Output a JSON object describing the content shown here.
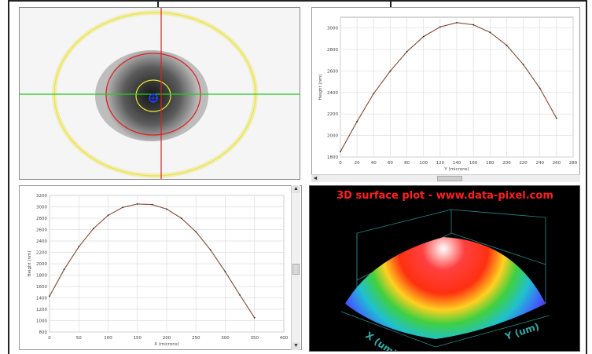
{
  "y_profile": {
    "chart_data": {
      "type": "line",
      "xlabel": "Y (microns)",
      "ylabel": "Height (nm)",
      "x_ticks": [
        "0",
        "20",
        "40",
        "60",
        "80",
        "100",
        "120",
        "140",
        "160",
        "180",
        "200",
        "220",
        "240",
        "260",
        "280"
      ],
      "y_ticks": [
        "1800",
        "2000",
        "2200",
        "2400",
        "2600",
        "2800",
        "3000"
      ],
      "xlim": [
        0,
        280
      ],
      "ylim": [
        1800,
        3100
      ],
      "series": [
        {
          "x": [
            0,
            20,
            40,
            60,
            80,
            100,
            120,
            140,
            160,
            180,
            200,
            220,
            240,
            260
          ],
          "y": [
            1850,
            2130,
            2390,
            2600,
            2780,
            2920,
            3010,
            3050,
            3030,
            2960,
            2840,
            2660,
            2440,
            2160
          ]
        }
      ]
    }
  },
  "x_profile": {
    "chart_data": {
      "type": "line",
      "xlabel": "X (microns)",
      "ylabel": "Height (nm)",
      "x_ticks": [
        "0",
        "50",
        "100",
        "150",
        "200",
        "250",
        "300",
        "350",
        "400"
      ],
      "y_ticks": [
        "800",
        "1000",
        "1200",
        "1400",
        "1600",
        "1800",
        "2000",
        "2200",
        "2400",
        "2600",
        "2800",
        "3000",
        "3200"
      ],
      "xlim": [
        0,
        400
      ],
      "ylim": [
        800,
        3200
      ],
      "series": [
        {
          "x": [
            0,
            25,
            50,
            75,
            100,
            125,
            150,
            175,
            200,
            225,
            250,
            275,
            300,
            325,
            350
          ],
          "y": [
            1430,
            1900,
            2300,
            2620,
            2850,
            2990,
            3050,
            3040,
            2960,
            2800,
            2560,
            2240,
            1860,
            1450,
            1050
          ]
        }
      ]
    }
  },
  "surface": {
    "title": "3D surface plot - www.data-pixel.com",
    "x_axis_label": "X (um)",
    "y_axis_label": "Y (um)"
  },
  "scroll": {
    "left_arrow": "◄",
    "up_arrow": "▲",
    "down_arrow": "▼"
  },
  "colors": {
    "profile_line": "#2e8b57",
    "fit_line": "#cc2222",
    "crosshair_h": "#22cc22",
    "crosshair_v": "#dd2222",
    "ring_yellow": "#e8e830",
    "ring_red": "#dd2222",
    "surface_title": "#ff2020"
  }
}
